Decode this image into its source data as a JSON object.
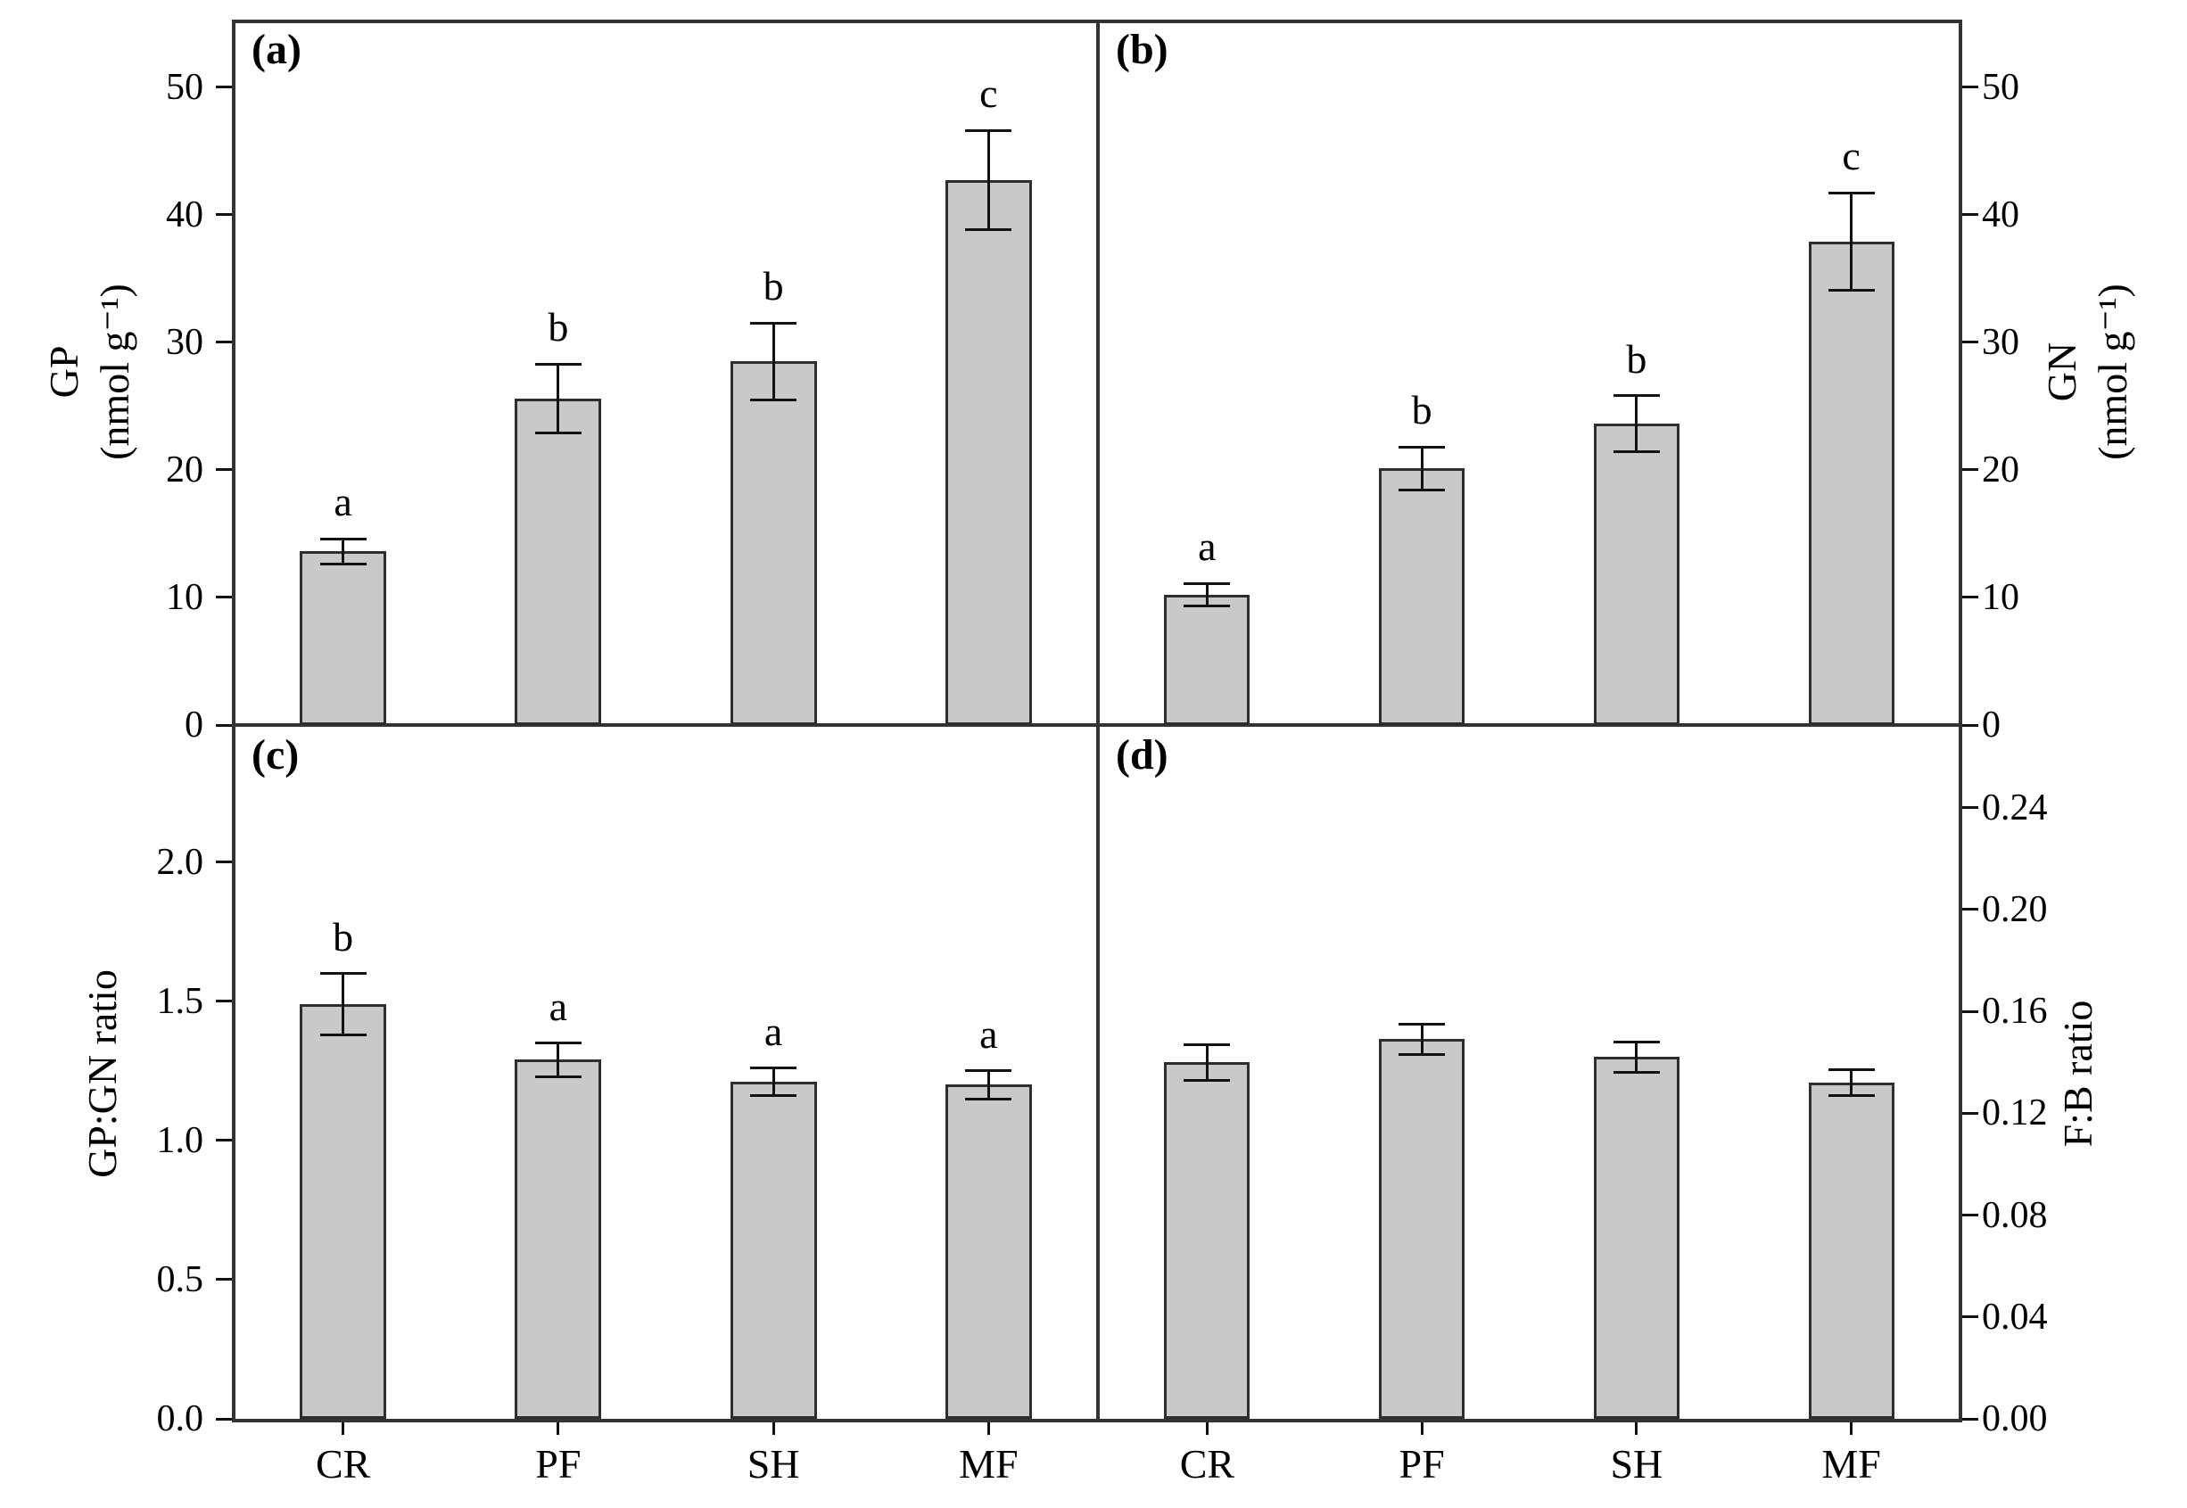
{
  "figure": {
    "background": "#ffffff",
    "bar_fill": "#c9c9c9",
    "bar_border": "#2e2e2e",
    "frame_color": "#333333",
    "text_color": "#000000"
  },
  "chart_data": {
    "type": "bar",
    "categories": [
      "CR",
      "PF",
      "SH",
      "MF"
    ],
    "grid": false,
    "legend": "none",
    "panels": [
      {
        "id": "a",
        "label": "(a)",
        "ylabel1": "GP",
        "ylabel2": "(nmol g⁻¹)",
        "axis_side": "left",
        "ylim": [
          0,
          55
        ],
        "ytick_values": [
          0,
          10,
          20,
          30,
          40,
          50
        ],
        "ytick_labels": [
          "0",
          "10",
          "20",
          "30",
          "40",
          "50"
        ],
        "values": [
          13.6,
          25.6,
          28.5,
          42.7
        ],
        "errors": [
          1.0,
          2.7,
          3.0,
          3.9
        ],
        "letters": [
          "a",
          "b",
          "b",
          "c"
        ]
      },
      {
        "id": "b",
        "label": "(b)",
        "ylabel1": "GN",
        "ylabel2": "(nmol g⁻¹)",
        "axis_side": "right",
        "ylim": [
          0,
          55
        ],
        "ytick_values": [
          0,
          10,
          20,
          30,
          40,
          50
        ],
        "ytick_labels": [
          "0",
          "10",
          "20",
          "30",
          "40",
          "50"
        ],
        "values": [
          10.2,
          20.1,
          23.6,
          37.9
        ],
        "errors": [
          0.9,
          1.7,
          2.2,
          3.8
        ],
        "letters": [
          "a",
          "b",
          "b",
          "c"
        ]
      },
      {
        "id": "c",
        "label": "(c)",
        "ylabel1": "GP:GN ratio",
        "ylabel2": "",
        "axis_side": "left",
        "ylim": [
          0,
          2.48
        ],
        "ytick_values": [
          0,
          0.5,
          1.0,
          1.5,
          2.0
        ],
        "ytick_labels": [
          "0.0",
          "0.5",
          "1.0",
          "1.5",
          "2.0"
        ],
        "values": [
          1.49,
          1.29,
          1.21,
          1.2
        ],
        "errors": [
          0.11,
          0.06,
          0.05,
          0.05
        ],
        "letters": [
          "b",
          "a",
          "a",
          "a"
        ],
        "show_x_labels": true
      },
      {
        "id": "d",
        "label": "(d)",
        "ylabel1": "F:B ratio",
        "ylabel2": "",
        "axis_side": "right",
        "ylim": [
          0,
          0.271
        ],
        "ytick_values": [
          0,
          0.04,
          0.08,
          0.12,
          0.16,
          0.2,
          0.24
        ],
        "ytick_labels": [
          "0.00",
          "0.04",
          "0.08",
          "0.12",
          "0.16",
          "0.20",
          "0.24"
        ],
        "values": [
          0.14,
          0.149,
          0.142,
          0.132
        ],
        "errors": [
          0.007,
          0.006,
          0.006,
          0.005
        ],
        "letters": null,
        "show_x_labels": true
      }
    ]
  }
}
